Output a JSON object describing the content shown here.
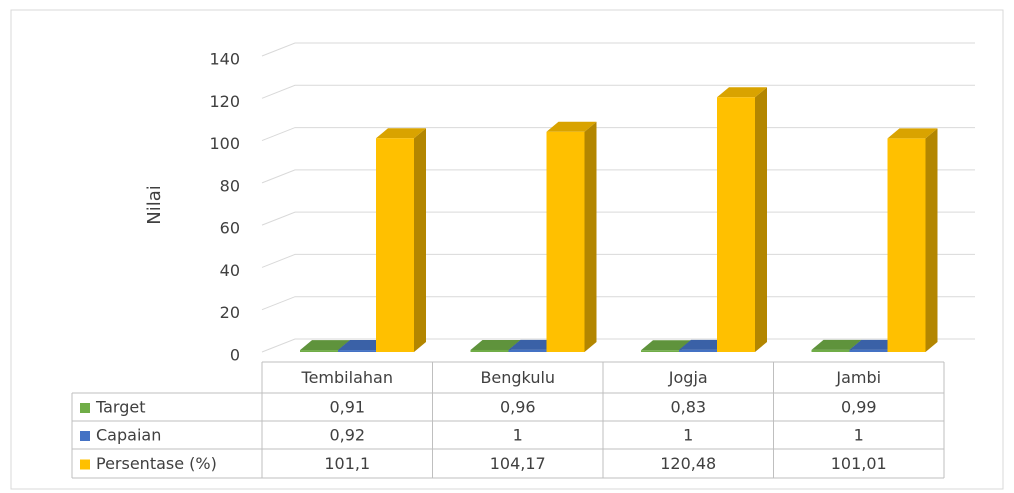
{
  "chart_data": {
    "type": "bar3d",
    "y_label": "Nilai",
    "categories": [
      "Tembilahan",
      "Bengkulu",
      "Jogja",
      "Jambi"
    ],
    "series": [
      {
        "name": "Target",
        "color": "#70ad47",
        "values": [
          0.91,
          0.96,
          0.83,
          0.99
        ],
        "value_labels": [
          "0,91",
          "0,96",
          "0,83",
          "0,99"
        ]
      },
      {
        "name": "Capaian",
        "color": "#4472c4",
        "values": [
          0.92,
          1,
          1,
          1
        ],
        "value_labels": [
          "0,92",
          "1",
          "1",
          "1"
        ]
      },
      {
        "name": "Persentase (%)",
        "color": "#ffc000",
        "values": [
          101.1,
          104.17,
          120.48,
          101.01
        ],
        "value_labels": [
          "101,1",
          "104,17",
          "120,48",
          "101,01"
        ]
      }
    ],
    "ylim": [
      0,
      140
    ],
    "yticks": [
      0,
      20,
      40,
      60,
      80,
      100,
      120,
      140
    ],
    "grid": true,
    "data_table": true
  }
}
